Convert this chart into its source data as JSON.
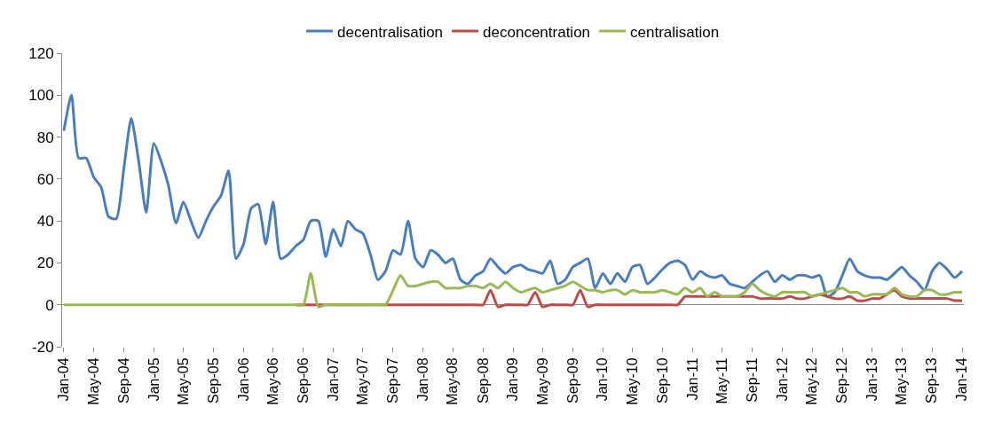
{
  "chart_data": {
    "type": "line",
    "legend": "top",
    "marker": "none",
    "line_style": "solid",
    "x": [
      "2004-01",
      "2004-02",
      "2004-03",
      "2004-04",
      "2004-05",
      "2004-06",
      "2004-07",
      "2004-08",
      "2004-09",
      "2004-10",
      "2004-11",
      "2004-12",
      "2005-01",
      "2005-02",
      "2005-03",
      "2005-04",
      "2005-05",
      "2005-06",
      "2005-07",
      "2005-08",
      "2005-09",
      "2005-10",
      "2005-11",
      "2005-12",
      "2006-01",
      "2006-02",
      "2006-03",
      "2006-04",
      "2006-05",
      "2006-06",
      "2006-07",
      "2006-08",
      "2006-09",
      "2006-10",
      "2006-11",
      "2006-12",
      "2007-01",
      "2007-02",
      "2007-03",
      "2007-04",
      "2007-05",
      "2007-06",
      "2007-07",
      "2007-08",
      "2007-09",
      "2007-10",
      "2007-11",
      "2007-12",
      "2008-01",
      "2008-02",
      "2008-03",
      "2008-04",
      "2008-05",
      "2008-06",
      "2008-07",
      "2008-08",
      "2008-09",
      "2008-10",
      "2008-11",
      "2008-12",
      "2009-01",
      "2009-02",
      "2009-03",
      "2009-04",
      "2009-05",
      "2009-06",
      "2009-07",
      "2009-08",
      "2009-09",
      "2009-10",
      "2009-11",
      "2009-12",
      "2010-01",
      "2010-02",
      "2010-03",
      "2010-04",
      "2010-05",
      "2010-06",
      "2010-07",
      "2010-08",
      "2010-09",
      "2010-10",
      "2010-11",
      "2010-12",
      "2011-01",
      "2011-02",
      "2011-03",
      "2011-04",
      "2011-05",
      "2011-06",
      "2011-07",
      "2011-08",
      "2011-09",
      "2011-10",
      "2011-11",
      "2011-12",
      "2012-01",
      "2012-02",
      "2012-03",
      "2012-04",
      "2012-05",
      "2012-06",
      "2012-07",
      "2012-08",
      "2012-09",
      "2012-10",
      "2012-11",
      "2012-12",
      "2013-01",
      "2013-02",
      "2013-03",
      "2013-04",
      "2013-05",
      "2013-06",
      "2013-07",
      "2013-08",
      "2013-09",
      "2013-10",
      "2013-11",
      "2013-12",
      "2014-01"
    ],
    "xlim": [
      "2003-12-25",
      "2014-01-08"
    ],
    "xticks": [
      {
        "value": "2004-01",
        "label": "Jan-04"
      },
      {
        "value": "2004-05",
        "label": "May-04"
      },
      {
        "value": "2004-09",
        "label": "Sep-04"
      },
      {
        "value": "2005-01",
        "label": "Jan-05"
      },
      {
        "value": "2005-05",
        "label": "May-05"
      },
      {
        "value": "2005-09",
        "label": "Sep-05"
      },
      {
        "value": "2006-01",
        "label": "Jan-06"
      },
      {
        "value": "2006-05",
        "label": "May-06"
      },
      {
        "value": "2006-09",
        "label": "Sep-06"
      },
      {
        "value": "2007-01",
        "label": "Jan-07"
      },
      {
        "value": "2007-05",
        "label": "May-07"
      },
      {
        "value": "2007-09",
        "label": "Sep-07"
      },
      {
        "value": "2008-01",
        "label": "Jan-08"
      },
      {
        "value": "2008-05",
        "label": "May-08"
      },
      {
        "value": "2008-09",
        "label": "Sep-08"
      },
      {
        "value": "2009-01",
        "label": "Jan-09"
      },
      {
        "value": "2009-05",
        "label": "May-09"
      },
      {
        "value": "2009-09",
        "label": "Sep-09"
      },
      {
        "value": "2010-01",
        "label": "Jan-10"
      },
      {
        "value": "2010-05",
        "label": "May-10"
      },
      {
        "value": "2010-09",
        "label": "Sep-10"
      },
      {
        "value": "2011-01",
        "label": "Jan-11"
      },
      {
        "value": "2011-05",
        "label": "May-11"
      },
      {
        "value": "2011-09",
        "label": "Sep-11"
      },
      {
        "value": "2012-01",
        "label": "Jan-12"
      },
      {
        "value": "2012-05",
        "label": "May-12"
      },
      {
        "value": "2012-09",
        "label": "Sep-12"
      },
      {
        "value": "2013-01",
        "label": "Jan-13"
      },
      {
        "value": "2013-05",
        "label": "May-13"
      },
      {
        "value": "2013-09",
        "label": "Sep-13"
      },
      {
        "value": "2014-01",
        "label": "Jan-14"
      }
    ],
    "ylim": [
      -20,
      120
    ],
    "yticks": [
      -20,
      0,
      20,
      40,
      60,
      80,
      100,
      120
    ],
    "series": [
      {
        "name": "decentralisation",
        "color": "#4a7ebb",
        "values": [
          83,
          100,
          70,
          70,
          61,
          56,
          42,
          41,
          65,
          89,
          68,
          44,
          77,
          68,
          57,
          39,
          49,
          40,
          32,
          40,
          47,
          52,
          64,
          22,
          29,
          46,
          48,
          29,
          49,
          22,
          24,
          28,
          31,
          40,
          40,
          23,
          36,
          28,
          40,
          36,
          34,
          24,
          12,
          16,
          26,
          24,
          40,
          22,
          18,
          26,
          24,
          20,
          22,
          12,
          10,
          14,
          16,
          22,
          18,
          15,
          18,
          19,
          17,
          16,
          15,
          21,
          10,
          12,
          18,
          20,
          22,
          8,
          15,
          10,
          15,
          11,
          18,
          19,
          10,
          13,
          17,
          20,
          21,
          19,
          12,
          16,
          14,
          13,
          14,
          10,
          9,
          8,
          11,
          14,
          16,
          11,
          14,
          12,
          14,
          14,
          13,
          14,
          4,
          6,
          14,
          22,
          16,
          14,
          13,
          13,
          12,
          15,
          18,
          14,
          11,
          7,
          16,
          20,
          17,
          13,
          16
        ]
      },
      {
        "name": "deconcentration",
        "color": "#be4b48",
        "values": [
          null,
          null,
          null,
          null,
          null,
          null,
          null,
          null,
          null,
          null,
          null,
          null,
          null,
          null,
          null,
          null,
          null,
          null,
          null,
          null,
          null,
          null,
          null,
          null,
          null,
          null,
          null,
          null,
          null,
          null,
          null,
          0,
          0,
          0,
          0,
          0,
          0,
          0,
          0,
          0,
          0,
          0,
          0,
          0,
          0,
          0,
          0,
          0,
          0,
          0,
          0,
          0,
          0,
          0,
          0,
          0,
          0,
          7,
          -1,
          0,
          0,
          0,
          0,
          6,
          -1,
          0,
          0,
          0,
          0,
          7,
          -1,
          0,
          0,
          0,
          0,
          0,
          0,
          0,
          0,
          0,
          0,
          0,
          0,
          4,
          4,
          4,
          4,
          4,
          4,
          4,
          4,
          4,
          4,
          3,
          3,
          3,
          3,
          4,
          3,
          3,
          4,
          5,
          4,
          3,
          3,
          4,
          2,
          2,
          3,
          3,
          5,
          7,
          4,
          3,
          3,
          3,
          3,
          3,
          3,
          2,
          2
        ]
      },
      {
        "name": "centralisation",
        "color": "#98b954",
        "values": [
          0,
          0,
          0,
          0,
          0,
          0,
          0,
          0,
          0,
          0,
          0,
          0,
          0,
          0,
          0,
          0,
          0,
          0,
          0,
          0,
          0,
          0,
          0,
          0,
          0,
          0,
          0,
          0,
          0,
          0,
          0,
          0,
          0,
          15,
          -1,
          0,
          0,
          0,
          0,
          0,
          0,
          0,
          0,
          0,
          7,
          14,
          9,
          9,
          10,
          11,
          11,
          8,
          8,
          8,
          9,
          9,
          8,
          10,
          8,
          11,
          8,
          6,
          7,
          8,
          6,
          7,
          8,
          9,
          11,
          9,
          7,
          7,
          6,
          7,
          7,
          5,
          7,
          6,
          6,
          6,
          7,
          6,
          5,
          8,
          6,
          8,
          4,
          6,
          4,
          4,
          4,
          6,
          10,
          7,
          5,
          4,
          6,
          6,
          6,
          6,
          4,
          5,
          6,
          7,
          8,
          6,
          6,
          4,
          5,
          5,
          5,
          8,
          5,
          4,
          4,
          7,
          7,
          5,
          5,
          6,
          6
        ]
      }
    ]
  }
}
